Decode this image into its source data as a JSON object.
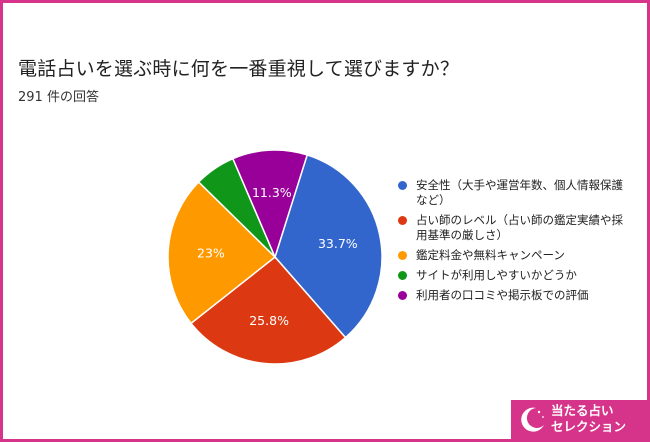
{
  "header": {
    "title": "電話占いを選ぶ時に何を一番重視して選びますか？",
    "subtitle": "291 件の回答"
  },
  "chart_data": {
    "type": "pie",
    "title": "電話占いを選ぶ時に何を一番重視して選びますか？",
    "subtitle": "291 件の回答",
    "legend_position": "right",
    "slices": [
      {
        "label": "安全性（大手や運営年数、個人情報保護など）",
        "value": 33.7,
        "display": "33.7%",
        "color": "#3366cc"
      },
      {
        "label": "占い師のレベル（占い師の鑑定実績や採用基準の厳しさ）",
        "value": 25.8,
        "display": "25.8%",
        "color": "#dc3912"
      },
      {
        "label": "鑑定料金や無料キャンペーン",
        "value": 23.0,
        "display": "23%",
        "color": "#ff9900"
      },
      {
        "label": "サイトが利用しやすいかどうか",
        "value": 6.2,
        "display": "",
        "color": "#109618"
      },
      {
        "label": "利用者の口コミや掲示板での評価",
        "value": 11.3,
        "display": "11.3%",
        "color": "#990099"
      }
    ]
  },
  "badge": {
    "line1": "当たる占い",
    "line2": "セレクション",
    "icon": "moon-icon"
  },
  "colors": {
    "frame": "#d6338a",
    "badge_bg": "#d6338a"
  }
}
